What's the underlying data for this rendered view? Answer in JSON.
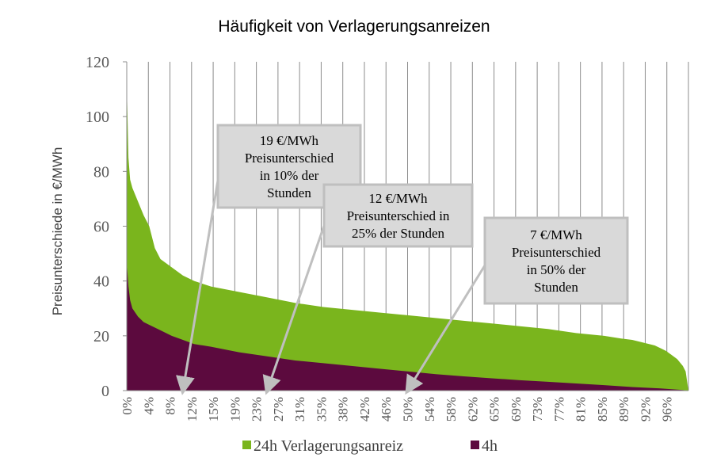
{
  "chart_data": {
    "type": "area",
    "title": "Häufigkeit von Verlagerungsanreizen",
    "xlabel": "",
    "ylabel": "Preisunterschiede in €/MWh",
    "ylim": [
      0,
      120
    ],
    "yticks": [
      "0",
      "20",
      "40",
      "60",
      "80",
      "100",
      "120"
    ],
    "xticks": [
      "0%",
      "4%",
      "8%",
      "12%",
      "15%",
      "19%",
      "23%",
      "27%",
      "31%",
      "35%",
      "38%",
      "42%",
      "46%",
      "50%",
      "54%",
      "58%",
      "62%",
      "65%",
      "69%",
      "73%",
      "77%",
      "81%",
      "85%",
      "89%",
      "92%",
      "96%"
    ],
    "grid": "vertical",
    "legend_position": "bottom",
    "series": [
      {
        "name": "24h Verlagerungsanreiz",
        "color": "#7ab51d",
        "x": [
          0,
          0.3,
          0.6,
          1,
          2,
          3,
          4,
          5,
          6,
          8,
          10,
          12,
          15,
          20,
          25,
          30,
          35,
          40,
          45,
          50,
          55,
          60,
          65,
          70,
          75,
          80,
          85,
          88,
          90,
          92,
          94,
          95,
          96,
          97,
          98,
          99,
          99.5,
          100
        ],
        "values": [
          112,
          85,
          77,
          74,
          69,
          64,
          60,
          52,
          48,
          45,
          42,
          40,
          38,
          36,
          34,
          32,
          30.5,
          29.5,
          28.5,
          27.5,
          26.5,
          25.5,
          24.5,
          23.5,
          22.5,
          21,
          20,
          19,
          18.5,
          17.5,
          16.5,
          15.5,
          14.5,
          13,
          11.5,
          9,
          7,
          0
        ]
      },
      {
        "name": "4h",
        "color": "#5c0a3e",
        "x": [
          0,
          0.3,
          0.6,
          1,
          2,
          3,
          4,
          6,
          8,
          10,
          12,
          15,
          20,
          25,
          30,
          35,
          40,
          45,
          50,
          55,
          60,
          65,
          70,
          75,
          80,
          85,
          90,
          95,
          97,
          99,
          100
        ],
        "values": [
          47,
          38,
          33,
          30,
          27,
          25,
          24,
          22,
          20,
          18.5,
          17,
          16,
          14,
          12.5,
          11,
          10,
          9,
          8,
          7,
          6,
          5.2,
          4.5,
          3.8,
          3.2,
          2.6,
          2,
          1.3,
          0.8,
          0.5,
          0.2,
          0
        ]
      }
    ],
    "annotations": [
      {
        "lines": [
          "19  €/MWh",
          "Preisunterschied",
          "in 10% der",
          "Stunden"
        ],
        "arrow_to": {
          "x": 10,
          "y": 0
        }
      },
      {
        "lines": [
          "12  €/MWh",
          "Preisunterschied  in",
          "25% der Stunden"
        ],
        "arrow_to": {
          "x": 25,
          "y": 0
        }
      },
      {
        "lines": [
          "7  €/MWh",
          "Preisunterschied",
          "in 50% der",
          "Stunden"
        ],
        "arrow_to": {
          "x": 50,
          "y": 0
        }
      }
    ]
  }
}
